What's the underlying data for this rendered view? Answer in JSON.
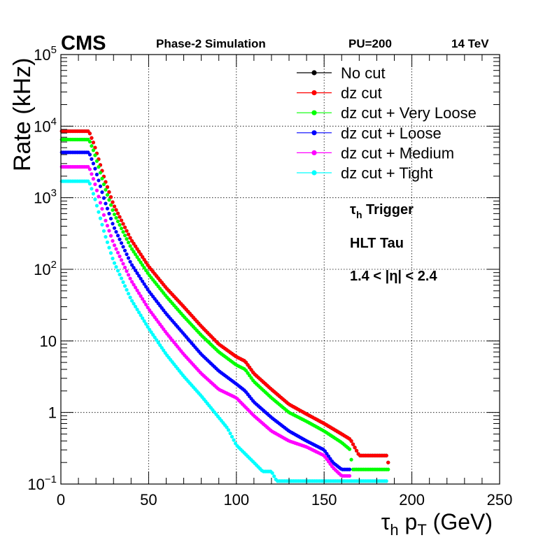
{
  "header": {
    "experiment": "CMS",
    "simulation": "Phase-2 Simulation",
    "pileup": "PU=200",
    "energy": "14 TeV"
  },
  "annotations": {
    "trigger_sym": "τ",
    "trigger_sub": "h",
    "trigger_rest": " Trigger",
    "path": "HLT Tau",
    "eta_range": "1.4 < |η| < 2.4"
  },
  "axes": {
    "xlabel_sym": "τ",
    "xlabel_sub1": "h",
    "xlabel_p": " p",
    "xlabel_sub2": "T",
    "xlabel_unit": " (GeV)",
    "ylabel": "Rate (kHz)",
    "xticks": [
      "0",
      "50",
      "100",
      "150",
      "200",
      "250"
    ],
    "yticks": [
      {
        "base": "10",
        "exp": "−1",
        "v": 0.1
      },
      {
        "base": "1",
        "exp": "",
        "v": 1
      },
      {
        "base": "10",
        "exp": "",
        "v": 10
      },
      {
        "base": "10",
        "exp": "2",
        "v": 100
      },
      {
        "base": "10",
        "exp": "3",
        "v": 1000
      },
      {
        "base": "10",
        "exp": "4",
        "v": 10000
      },
      {
        "base": "10",
        "exp": "5",
        "v": 100000
      }
    ]
  },
  "chart_data": {
    "type": "scatter",
    "xlim": [
      0,
      250
    ],
    "ylim": [
      0.1,
      100000
    ],
    "yscale": "log",
    "grid": true,
    "legend_position": "top-right",
    "series": [
      {
        "name": "No cut",
        "color": "#000000",
        "curve": [
          [
            0,
            8500
          ],
          [
            16,
            8500
          ],
          [
            19,
            5500
          ],
          [
            25,
            1800
          ],
          [
            30,
            800
          ],
          [
            40,
            260
          ],
          [
            50,
            110
          ],
          [
            60,
            55
          ],
          [
            70,
            30
          ],
          [
            80,
            16
          ],
          [
            90,
            9
          ],
          [
            100,
            6
          ],
          [
            105,
            5.2
          ],
          [
            110,
            3.5
          ],
          [
            120,
            2.1
          ],
          [
            130,
            1.3
          ],
          [
            140,
            0.95
          ],
          [
            150,
            0.7
          ],
          [
            160,
            0.5
          ],
          [
            165,
            0.42
          ],
          [
            170,
            0.25
          ],
          [
            186,
            0.25
          ],
          [
            187,
            0.16
          ]
        ]
      },
      {
        "name": "dz cut",
        "color": "#ff0000",
        "curve": [
          [
            0,
            8500
          ],
          [
            16,
            8500
          ],
          [
            19,
            5500
          ],
          [
            25,
            1800
          ],
          [
            30,
            800
          ],
          [
            40,
            260
          ],
          [
            50,
            110
          ],
          [
            60,
            55
          ],
          [
            70,
            30
          ],
          [
            80,
            16
          ],
          [
            90,
            9
          ],
          [
            100,
            6
          ],
          [
            105,
            5.2
          ],
          [
            110,
            3.5
          ],
          [
            120,
            2.1
          ],
          [
            130,
            1.3
          ],
          [
            140,
            0.95
          ],
          [
            150,
            0.7
          ],
          [
            160,
            0.5
          ],
          [
            165,
            0.42
          ],
          [
            170,
            0.25
          ],
          [
            186,
            0.25
          ],
          [
            187,
            0.16
          ]
        ]
      },
      {
        "name": "dz cut + Very Loose",
        "color": "#00ff00",
        "curve": [
          [
            0,
            6500
          ],
          [
            16,
            6500
          ],
          [
            19,
            4300
          ],
          [
            25,
            1400
          ],
          [
            30,
            620
          ],
          [
            40,
            200
          ],
          [
            50,
            85
          ],
          [
            60,
            42
          ],
          [
            70,
            22
          ],
          [
            80,
            12
          ],
          [
            90,
            7
          ],
          [
            100,
            4.6
          ],
          [
            105,
            4
          ],
          [
            110,
            2.7
          ],
          [
            120,
            1.6
          ],
          [
            130,
            1.0
          ],
          [
            140,
            0.75
          ],
          [
            150,
            0.55
          ],
          [
            160,
            0.38
          ],
          [
            165,
            0.3
          ],
          [
            166,
            0.16
          ],
          [
            187,
            0.16
          ]
        ]
      },
      {
        "name": "dz cut + Loose",
        "color": "#0000ff",
        "curve": [
          [
            0,
            4300
          ],
          [
            16,
            4300
          ],
          [
            19,
            2800
          ],
          [
            25,
            900
          ],
          [
            30,
            400
          ],
          [
            40,
            120
          ],
          [
            50,
            50
          ],
          [
            60,
            24
          ],
          [
            70,
            12.5
          ],
          [
            80,
            6.5
          ],
          [
            90,
            3.8
          ],
          [
            100,
            2.5
          ],
          [
            105,
            2
          ],
          [
            110,
            1.4
          ],
          [
            120,
            0.85
          ],
          [
            130,
            0.55
          ],
          [
            140,
            0.4
          ],
          [
            150,
            0.3
          ],
          [
            155,
            0.2
          ],
          [
            160,
            0.16
          ],
          [
            165,
            0.16
          ]
        ]
      },
      {
        "name": "dz cut + Medium",
        "color": "#ff00ff",
        "curve": [
          [
            0,
            2700
          ],
          [
            16,
            2700
          ],
          [
            19,
            1700
          ],
          [
            25,
            520
          ],
          [
            30,
            230
          ],
          [
            40,
            70
          ],
          [
            50,
            28
          ],
          [
            60,
            13
          ],
          [
            70,
            6.5
          ],
          [
            80,
            3.5
          ],
          [
            90,
            2.1
          ],
          [
            100,
            1.6
          ],
          [
            110,
            0.9
          ],
          [
            120,
            0.55
          ],
          [
            130,
            0.4
          ],
          [
            140,
            0.33
          ],
          [
            150,
            0.25
          ],
          [
            155,
            0.17
          ],
          [
            160,
            0.13
          ],
          [
            165,
            0.13
          ]
        ]
      },
      {
        "name": "dz cut + Tight",
        "color": "#00ffff",
        "curve": [
          [
            0,
            1700
          ],
          [
            16,
            1700
          ],
          [
            19,
            1050
          ],
          [
            25,
            310
          ],
          [
            30,
            130
          ],
          [
            40,
            38
          ],
          [
            50,
            15
          ],
          [
            60,
            6.5
          ],
          [
            70,
            3.2
          ],
          [
            80,
            1.7
          ],
          [
            90,
            0.85
          ],
          [
            95,
            0.6
          ],
          [
            100,
            0.35
          ],
          [
            110,
            0.2
          ],
          [
            115,
            0.15
          ],
          [
            120,
            0.15
          ],
          [
            123,
            0.11
          ],
          [
            186,
            0.11
          ]
        ]
      }
    ]
  }
}
